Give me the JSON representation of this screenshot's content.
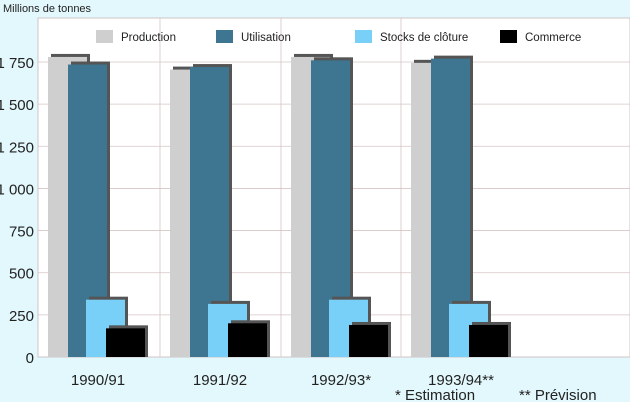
{
  "chart_data": {
    "type": "bar",
    "ylabel": "Millions de tonnes",
    "ylim": [
      0,
      1750
    ],
    "yticks": [
      0,
      250,
      500,
      750,
      1000,
      1250,
      1500,
      1750
    ],
    "ytick_labels": [
      "0",
      "250",
      "500",
      "750",
      "1 000",
      "1 250",
      "1 500",
      "1 750"
    ],
    "categories": [
      "1990/91",
      "1991/92",
      "1992/93*",
      "1993/94**"
    ],
    "series": [
      {
        "name": "Production",
        "color": "#cfcfcf",
        "values": [
          1780,
          1705,
          1780,
          1745
        ]
      },
      {
        "name": "Utilisation",
        "color": "#3e7590",
        "values": [
          1735,
          1720,
          1760,
          1770
        ]
      },
      {
        "name": "Stocks de clôture",
        "color": "#78cff8",
        "values": [
          340,
          315,
          340,
          315
        ]
      },
      {
        "name": "Commerce",
        "color": "#000000",
        "values": [
          170,
          200,
          190,
          190
        ]
      }
    ],
    "grid": true,
    "legend": "top",
    "notes": [
      "* Estimation",
      "** Prévision"
    ]
  }
}
